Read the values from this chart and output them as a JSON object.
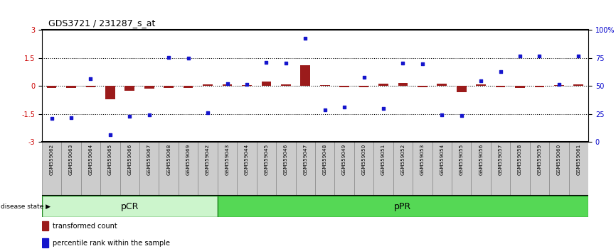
{
  "title": "GDS3721 / 231287_s_at",
  "samples": [
    "GSM559062",
    "GSM559063",
    "GSM559064",
    "GSM559065",
    "GSM559066",
    "GSM559067",
    "GSM559068",
    "GSM559069",
    "GSM559042",
    "GSM559043",
    "GSM559044",
    "GSM559045",
    "GSM559046",
    "GSM559047",
    "GSM559048",
    "GSM559049",
    "GSM559050",
    "GSM559051",
    "GSM559052",
    "GSM559053",
    "GSM559054",
    "GSM559055",
    "GSM559056",
    "GSM559057",
    "GSM559058",
    "GSM559059",
    "GSM559060",
    "GSM559061"
  ],
  "transformed_count": [
    -0.12,
    -0.1,
    -0.08,
    -0.7,
    -0.25,
    -0.15,
    -0.1,
    -0.1,
    0.08,
    0.1,
    0.06,
    0.22,
    0.08,
    1.1,
    0.06,
    -0.08,
    -0.06,
    0.12,
    0.15,
    -0.06,
    0.12,
    -0.35,
    0.1,
    -0.08,
    -0.1,
    -0.06,
    0.06,
    0.08
  ],
  "percentile_rank": [
    -1.75,
    -1.72,
    0.38,
    -2.62,
    -1.62,
    -1.55,
    1.55,
    1.5,
    -1.45,
    0.12,
    0.08,
    1.28,
    1.22,
    2.55,
    -1.28,
    -1.12,
    0.48,
    -1.22,
    1.22,
    1.18,
    -1.55,
    -1.6,
    0.28,
    0.78,
    1.6,
    1.62,
    0.08,
    1.6
  ],
  "group_boundaries": [
    0,
    9,
    28
  ],
  "ylim": [
    -3,
    3
  ],
  "yticks_left": [
    -3,
    -1.5,
    0,
    1.5,
    3
  ],
  "right_tick_positions": [
    -3,
    -1.5,
    0,
    1.5,
    3
  ],
  "right_tick_labels": [
    "0",
    "25",
    "50",
    "75",
    "100%"
  ],
  "hlines": [
    -1.5,
    0,
    1.5
  ],
  "bar_color": "#9b1b1b",
  "dot_color": "#1515cc",
  "pcr_color": "#ccf5cc",
  "ppr_color": "#55d855",
  "border_color": "#228822",
  "xtick_bg": "#cccccc"
}
